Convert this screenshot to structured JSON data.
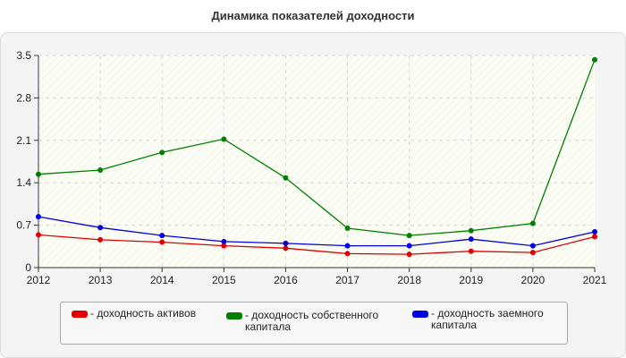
{
  "chart_data": {
    "type": "line",
    "title": "Динамика показателей доходности",
    "xlabel": "",
    "ylabel": "",
    "x": [
      "2012",
      "2013",
      "2014",
      "2015",
      "2016",
      "2017",
      "2018",
      "2019",
      "2020",
      "2021"
    ],
    "ylim": [
      0,
      3.5
    ],
    "yticks": [
      "0",
      "0.7",
      "1.4",
      "2.1",
      "2.8",
      "3.5"
    ],
    "grid": true,
    "legend_position": "bottom",
    "series": [
      {
        "name": "- доходность активов",
        "color": "#e00000",
        "values": [
          0.54,
          0.46,
          0.42,
          0.36,
          0.32,
          0.23,
          0.22,
          0.27,
          0.25,
          0.51
        ]
      },
      {
        "name": "- доходность собственного капитала",
        "color": "#007f00",
        "values": [
          1.54,
          1.61,
          1.9,
          2.12,
          1.48,
          0.65,
          0.53,
          0.61,
          0.73,
          3.43
        ]
      },
      {
        "name": "- доходность заемного капитала",
        "color": "#0000e0",
        "values": [
          0.84,
          0.66,
          0.53,
          0.43,
          0.4,
          0.36,
          0.36,
          0.47,
          0.36,
          0.59
        ]
      }
    ]
  }
}
